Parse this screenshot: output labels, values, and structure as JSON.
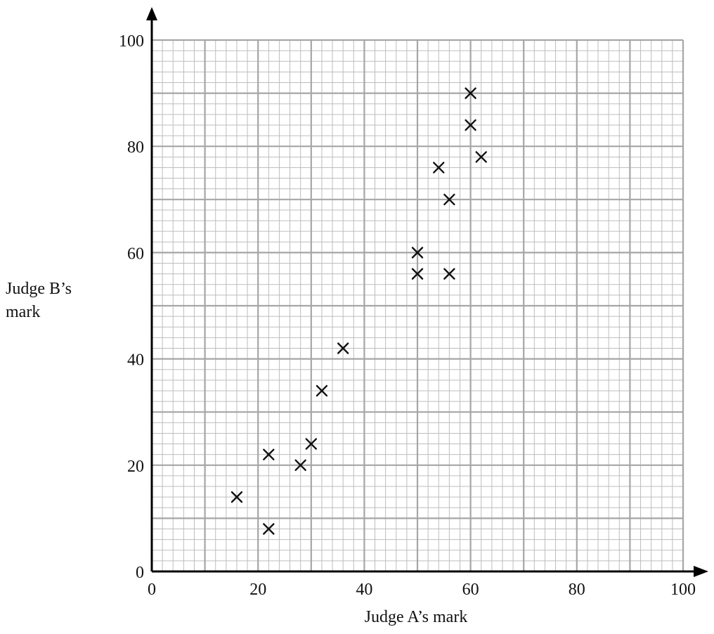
{
  "chart_data": {
    "type": "scatter",
    "title": "",
    "xlabel": "Judge A’s mark",
    "ylabel_lines": [
      "Judge B’s",
      "mark"
    ],
    "xlim": [
      0,
      100
    ],
    "ylim": [
      0,
      100
    ],
    "xticks": [
      0,
      20,
      40,
      60,
      80,
      100
    ],
    "yticks": [
      0,
      20,
      40,
      60,
      80,
      100
    ],
    "xtick_labels": [
      "0",
      "20",
      "40",
      "60",
      "80",
      "100"
    ],
    "ytick_labels": [
      "0",
      "20",
      "40",
      "60",
      "80",
      "100"
    ],
    "grid": true,
    "marker": "cross",
    "points": [
      {
        "x": 16,
        "y": 14
      },
      {
        "x": 22,
        "y": 8
      },
      {
        "x": 22,
        "y": 22
      },
      {
        "x": 28,
        "y": 20
      },
      {
        "x": 30,
        "y": 24
      },
      {
        "x": 32,
        "y": 34
      },
      {
        "x": 36,
        "y": 42
      },
      {
        "x": 50,
        "y": 56
      },
      {
        "x": 50,
        "y": 60
      },
      {
        "x": 54,
        "y": 76
      },
      {
        "x": 56,
        "y": 56
      },
      {
        "x": 56,
        "y": 70
      },
      {
        "x": 60,
        "y": 84
      },
      {
        "x": 60,
        "y": 90
      },
      {
        "x": 62,
        "y": 78
      }
    ],
    "colors": {
      "grid_minor": "#bdbdbd",
      "grid_major": "#a6a6a6",
      "axis": "#000000",
      "marker": "#111111"
    }
  }
}
